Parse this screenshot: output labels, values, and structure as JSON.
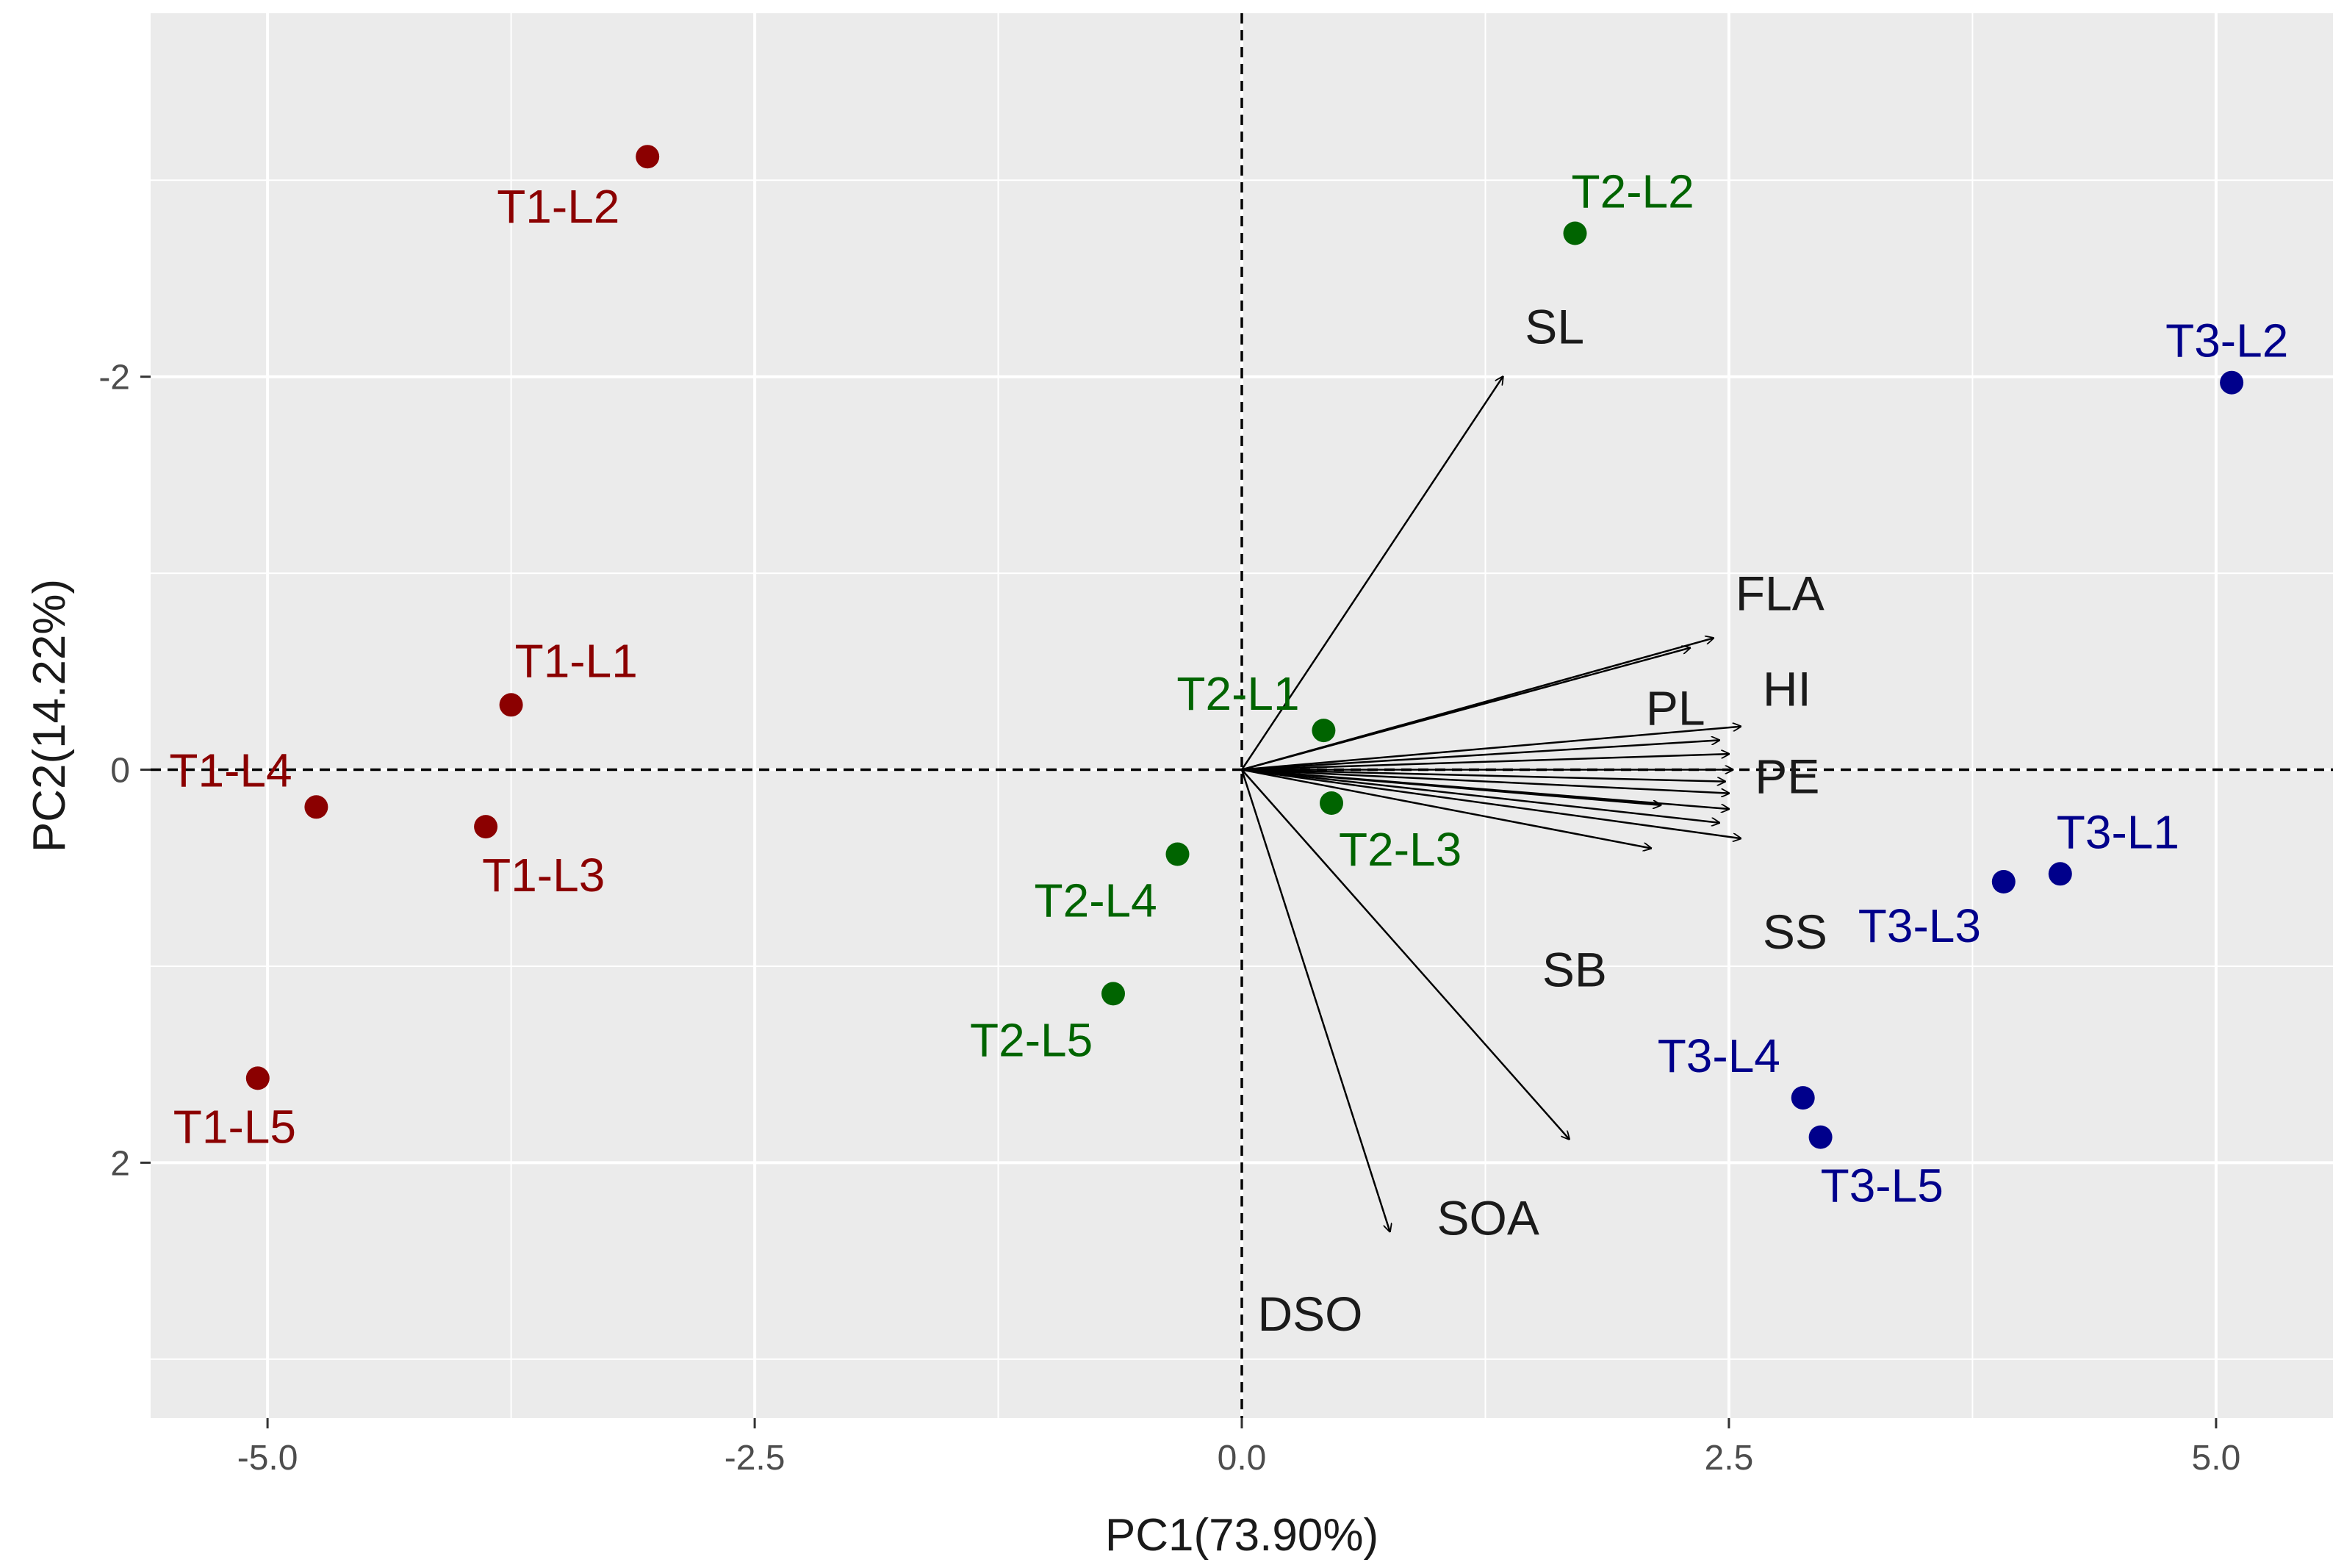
{
  "chart_data": {
    "type": "scatter",
    "title": "",
    "xlabel": "PC1(73.90%)",
    "ylabel": "PC2(14.22%)",
    "xlim": [
      -5.6,
      5.6
    ],
    "ylim": [
      -3.85,
      3.3
    ],
    "y_reversed": true,
    "grid": true,
    "legend": "none",
    "x_ticks": [
      {
        "value": -5.0,
        "label": "-5.0"
      },
      {
        "value": -2.5,
        "label": "-2.5"
      },
      {
        "value": 0.0,
        "label": "0.0"
      },
      {
        "value": 2.5,
        "label": "2.5"
      },
      {
        "value": 5.0,
        "label": "5.0"
      }
    ],
    "y_ticks": [
      {
        "value": -2,
        "label": "-2"
      },
      {
        "value": 0,
        "label": "0"
      },
      {
        "value": 2,
        "label": "2"
      }
    ],
    "reference_lines": {
      "x": 0,
      "y": 0,
      "style": "dashed"
    },
    "series": [
      {
        "name": "T1",
        "color": "#8b0000",
        "points": [
          {
            "label": "T1-L1",
            "x": -3.75,
            "y": -0.33
          },
          {
            "label": "T1-L2",
            "x": -3.05,
            "y": -3.12
          },
          {
            "label": "T1-L3",
            "x": -3.88,
            "y": 0.29
          },
          {
            "label": "T1-L4",
            "x": -4.75,
            "y": 0.19
          },
          {
            "label": "T1-L5",
            "x": -5.05,
            "y": 1.57
          }
        ]
      },
      {
        "name": "T2",
        "color": "#006400",
        "points": [
          {
            "label": "T2-L1",
            "x": 0.42,
            "y": -0.2
          },
          {
            "label": "T2-L2",
            "x": 1.71,
            "y": -2.73
          },
          {
            "label": "T2-L3",
            "x": 0.46,
            "y": 0.17
          },
          {
            "label": "T2-L4",
            "x": -0.33,
            "y": 0.43
          },
          {
            "label": "T2-L5",
            "x": -0.66,
            "y": 1.14
          }
        ]
      },
      {
        "name": "T3",
        "color": "#00008b",
        "points": [
          {
            "label": "T3-L1",
            "x": 4.2,
            "y": 0.53
          },
          {
            "label": "T3-L2",
            "x": 5.08,
            "y": -1.97
          },
          {
            "label": "T3-L3",
            "x": 3.91,
            "y": 0.57
          },
          {
            "label": "T3-L4",
            "x": 2.88,
            "y": 1.67
          },
          {
            "label": "T3-L5",
            "x": 2.97,
            "y": 1.87
          }
        ]
      }
    ],
    "loadings": [
      {
        "label": "SL",
        "x": 1.34,
        "y": -2.0
      },
      {
        "label": "FLA",
        "x": 2.42,
        "y": -0.67
      },
      {
        "label": "PL",
        "x": 2.3,
        "y": -0.62
      },
      {
        "label": "HI",
        "x": 2.56,
        "y": -0.22
      },
      {
        "label": "PE",
        "x": 2.52,
        "y": 0.0
      },
      {
        "label": "SS",
        "x": 2.56,
        "y": 0.35
      },
      {
        "label": "SB",
        "x": 2.1,
        "y": 0.4
      },
      {
        "label": "SOA",
        "x": 1.68,
        "y": 1.88
      },
      {
        "label": "DSO",
        "x": 0.76,
        "y": 2.35
      }
    ],
    "extra_arrows": [
      {
        "x": 2.45,
        "y": -0.15
      },
      {
        "x": 2.5,
        "y": -0.08
      },
      {
        "x": 2.48,
        "y": 0.06
      },
      {
        "x": 2.5,
        "y": 0.12
      },
      {
        "x": 2.5,
        "y": 0.2
      },
      {
        "x": 2.45,
        "y": 0.27
      },
      {
        "x": 2.15,
        "y": 0.18
      }
    ]
  }
}
